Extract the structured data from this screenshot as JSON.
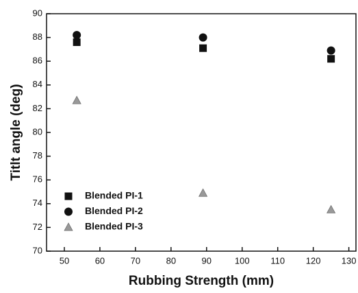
{
  "chart_data": {
    "type": "scatter",
    "xlabel": "Rubbing Strength (mm)",
    "ylabel": "Titlt angle (deg)",
    "xlim": [
      45,
      132
    ],
    "xticks": [
      50,
      60,
      70,
      80,
      90,
      100,
      110,
      120,
      130
    ],
    "ylim": [
      70,
      90
    ],
    "yticks": [
      70,
      72,
      74,
      76,
      78,
      80,
      82,
      84,
      86,
      88,
      90
    ],
    "legend": "lower left",
    "series": [
      {
        "name": "Blended PI-1",
        "color": "#111111",
        "marker": "square",
        "x": [
          53.5,
          89,
          125
        ],
        "values": [
          87.6,
          87.1,
          86.2
        ]
      },
      {
        "name": "Blended PI-2",
        "color": "#111111",
        "marker": "circle",
        "x": [
          53.5,
          89,
          125
        ],
        "values": [
          88.2,
          88.0,
          86.9
        ]
      },
      {
        "name": "Blended PI-3",
        "color": "#999999",
        "marker": "triangle",
        "x": [
          53.5,
          89,
          125
        ],
        "values": [
          82.7,
          74.9,
          73.5
        ]
      }
    ]
  }
}
